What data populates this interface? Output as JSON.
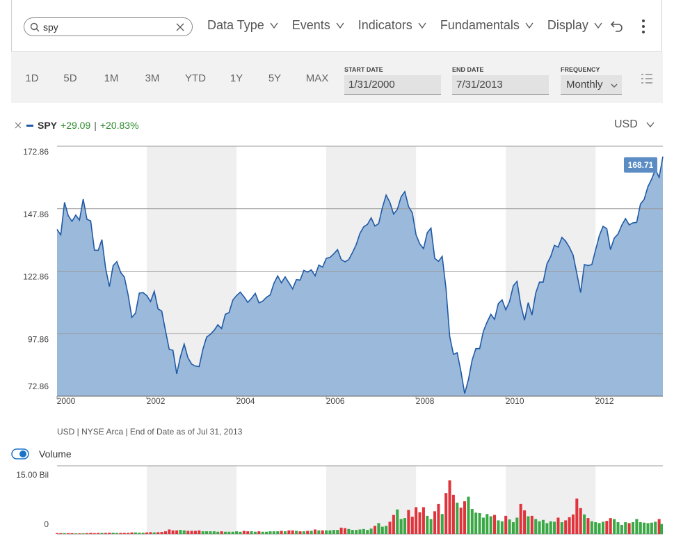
{
  "toolbar": {
    "search": "spy",
    "menus": [
      "Data Type",
      "Events",
      "Indicators",
      "Fundamentals",
      "Display"
    ]
  },
  "ranges": [
    "1D",
    "5D",
    "1M",
    "3M",
    "YTD",
    "1Y",
    "5Y",
    "MAX"
  ],
  "start_date": {
    "label": "START DATE",
    "value": "1/31/2000"
  },
  "end_date": {
    "label": "END DATE",
    "value": "7/31/2013"
  },
  "frequency": {
    "label": "FREQUENCY",
    "value": "Monthly"
  },
  "legend": {
    "symbol": "SPY",
    "change": "+29.09",
    "separator": "|",
    "change_pct": "+20.83%"
  },
  "currency": "USD",
  "footnote": "USD | NYSE Arca | End of Date as of Jul 31, 2013",
  "volume_toggle": "Volume",
  "chart_data": [
    {
      "type": "area",
      "name": "SPY",
      "color": "#1f5aa6",
      "fill": "#9bb9da",
      "band_color": "#efefef",
      "xlim": [
        2000,
        2013.5
      ],
      "xticks": [
        2000,
        2002,
        2004,
        2006,
        2008,
        2010,
        2012
      ],
      "ylim": [
        72.86,
        172.86
      ],
      "yticks": [
        72.86,
        97.86,
        122.86,
        147.86,
        172.86
      ],
      "grid": true,
      "x": [
        2000,
        2000.083,
        2000.167,
        2000.25,
        2000.333,
        2000.417,
        2000.5,
        2000.583,
        2000.667,
        2000.75,
        2000.833,
        2000.917,
        2001,
        2001.083,
        2001.167,
        2001.25,
        2001.333,
        2001.417,
        2001.5,
        2001.583,
        2001.667,
        2001.75,
        2001.833,
        2001.917,
        2002,
        2002.083,
        2002.167,
        2002.25,
        2002.333,
        2002.417,
        2002.5,
        2002.583,
        2002.667,
        2002.75,
        2002.833,
        2002.917,
        2003,
        2003.083,
        2003.167,
        2003.25,
        2003.333,
        2003.417,
        2003.5,
        2003.583,
        2003.667,
        2003.75,
        2003.833,
        2003.917,
        2004,
        2004.083,
        2004.167,
        2004.25,
        2004.333,
        2004.417,
        2004.5,
        2004.583,
        2004.667,
        2004.75,
        2004.833,
        2004.917,
        2005,
        2005.083,
        2005.167,
        2005.25,
        2005.333,
        2005.417,
        2005.5,
        2005.583,
        2005.667,
        2005.75,
        2005.833,
        2005.917,
        2006,
        2006.083,
        2006.167,
        2006.25,
        2006.333,
        2006.417,
        2006.5,
        2006.583,
        2006.667,
        2006.75,
        2006.833,
        2006.917,
        2007,
        2007.083,
        2007.167,
        2007.25,
        2007.333,
        2007.417,
        2007.5,
        2007.583,
        2007.667,
        2007.75,
        2007.833,
        2007.917,
        2008,
        2008.083,
        2008.167,
        2008.25,
        2008.333,
        2008.417,
        2008.5,
        2008.583,
        2008.667,
        2008.75,
        2008.833,
        2008.917,
        2009,
        2009.083,
        2009.167,
        2009.25,
        2009.333,
        2009.417,
        2009.5,
        2009.583,
        2009.667,
        2009.75,
        2009.833,
        2009.917,
        2010,
        2010.083,
        2010.167,
        2010.25,
        2010.333,
        2010.417,
        2010.5,
        2010.583,
        2010.667,
        2010.75,
        2010.833,
        2010.917,
        2011,
        2011.083,
        2011.167,
        2011.25,
        2011.333,
        2011.417,
        2011.5,
        2011.583,
        2011.667,
        2011.75,
        2011.833,
        2011.917,
        2012,
        2012.083,
        2012.167,
        2012.25,
        2012.333,
        2012.417,
        2012.5,
        2012.583,
        2012.667,
        2012.75,
        2012.833,
        2012.917,
        2013,
        2013.083,
        2013.167,
        2013.25,
        2013.333,
        2013.417,
        2013.5
      ],
      "values": [
        139.6,
        137.4,
        150.4,
        145.1,
        142.8,
        145.3,
        143.3,
        151.7,
        143.6,
        143.0,
        131.3,
        131.2,
        135.5,
        124.0,
        116.7,
        125.1,
        126.7,
        122.4,
        120.5,
        113.5,
        104.4,
        106.1,
        114.1,
        114.3,
        113.1,
        110.7,
        114.8,
        107.8,
        106.9,
        99.0,
        91.6,
        91.2,
        81.8,
        88.7,
        93.7,
        88.2,
        85.7,
        84.9,
        84.7,
        91.6,
        96.5,
        97.6,
        99.2,
        101.4,
        99.9,
        105.6,
        106.3,
        111.3,
        113.1,
        114.5,
        112.6,
        110.4,
        112.0,
        114.0,
        110.2,
        110.9,
        112.4,
        113.4,
        118.0,
        121.0,
        118.2,
        120.6,
        118.2,
        115.8,
        119.5,
        119.3,
        123.2,
        122.5,
        123.4,
        121.0,
        125.3,
        124.5,
        128.0,
        128.4,
        129.8,
        131.5,
        127.5,
        126.6,
        127.5,
        130.3,
        133.5,
        138.0,
        140.6,
        141.6,
        144.2,
        140.9,
        141.9,
        148.3,
        153.3,
        150.4,
        145.7,
        147.6,
        152.6,
        154.7,
        148.7,
        146.2,
        137.4,
        133.8,
        131.9,
        138.3,
        140.1,
        128.0,
        126.8,
        128.8,
        116.0,
        96.8,
        89.6,
        90.2,
        82.8,
        73.9,
        79.5,
        87.3,
        91.9,
        91.9,
        98.8,
        102.5,
        105.6,
        103.6,
        109.9,
        111.4,
        107.4,
        110.7,
        117.0,
        118.8,
        109.4,
        103.2,
        110.3,
        105.3,
        114.1,
        118.5,
        118.5,
        125.8,
        128.7,
        133.2,
        132.5,
        136.4,
        134.9,
        132.4,
        129.3,
        121.9,
        114.3,
        125.5,
        125.1,
        125.5,
        131.3,
        137.0,
        140.8,
        139.9,
        131.5,
        136.1,
        137.7,
        141.2,
        143.9,
        141.4,
        142.2,
        142.4,
        149.7,
        151.6,
        156.7,
        159.7,
        163.5,
        160.4,
        168.71
      ]
    },
    {
      "type": "bar",
      "name": "Volume",
      "up_color": "#3aa845",
      "down_color": "#e0343c",
      "xlim": [
        2000,
        2013.5
      ],
      "ylim": [
        0,
        15
      ],
      "yticks": [
        0,
        {
          "value": 15,
          "label": "15.00 Bil"
        }
      ],
      "values": [
        0.2,
        0.2,
        0.2,
        0.2,
        0.2,
        0.15,
        0.15,
        0.15,
        0.2,
        0.25,
        0.2,
        0.25,
        0.25,
        0.25,
        0.3,
        0.3,
        0.25,
        0.25,
        0.25,
        0.25,
        0.35,
        0.35,
        0.3,
        0.3,
        0.35,
        0.4,
        0.35,
        0.4,
        0.45,
        0.6,
        1.0,
        0.8,
        0.8,
        0.9,
        0.8,
        0.7,
        0.7,
        0.7,
        0.8,
        0.6,
        0.6,
        0.6,
        0.6,
        0.5,
        0.6,
        0.5,
        0.5,
        0.5,
        0.6,
        0.5,
        0.7,
        0.6,
        0.6,
        0.5,
        0.6,
        0.5,
        0.5,
        0.6,
        0.6,
        0.6,
        0.7,
        0.6,
        0.8,
        0.8,
        0.7,
        0.6,
        0.6,
        0.7,
        0.7,
        1.0,
        0.8,
        0.8,
        0.8,
        0.8,
        0.9,
        0.9,
        1.4,
        1.3,
        1.1,
        0.9,
        0.9,
        1.0,
        1.1,
        0.9,
        1.2,
        1.8,
        2.4,
        1.6,
        1.8,
        2.7,
        4.2,
        5.4,
        3.3,
        3.5,
        5.3,
        3.8,
        5.9,
        4.8,
        5.9,
        4.0,
        3.3,
        5.0,
        6.6,
        4.4,
        9.0,
        11.8,
        8.6,
        6.9,
        5.8,
        7.2,
        8.2,
        5.5,
        4.7,
        4.6,
        3.6,
        4.4,
        3.9,
        4.2,
        3.0,
        2.8,
        4.0,
        3.2,
        2.6,
        3.6,
        6.6,
        5.2,
        3.9,
        4.0,
        3.3,
        2.8,
        3.1,
        2.4,
        2.8,
        2.7,
        3.6,
        2.6,
        3.0,
        3.7,
        4.3,
        7.8,
        5.7,
        4.3,
        3.5,
        2.8,
        2.6,
        2.4,
        2.7,
        2.9,
        3.5,
        3.3,
        2.6,
        2.0,
        2.6,
        2.4,
        2.6,
        3.3,
        2.6,
        2.5,
        2.4,
        2.5,
        2.7,
        3.3,
        2.2
      ]
    }
  ]
}
